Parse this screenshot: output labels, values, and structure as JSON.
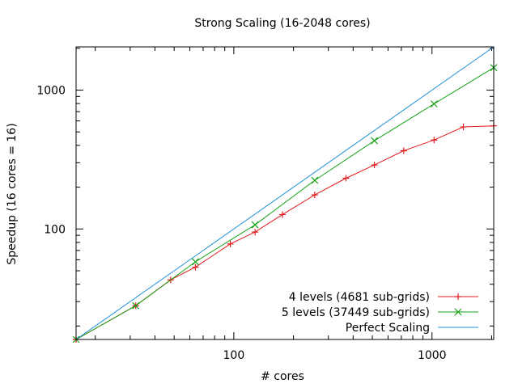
{
  "chart_data": {
    "type": "line",
    "title": "Strong Scaling (16-2048 cores)",
    "xlabel": "# cores",
    "ylabel": "Speedup (16 cores = 16)",
    "x_scale": "log",
    "y_scale": "log",
    "xlim": [
      16,
      2048
    ],
    "ylim": [
      16,
      2048
    ],
    "x_ticks": [
      {
        "value": 100,
        "label": "100"
      },
      {
        "value": 1000,
        "label": "1000"
      }
    ],
    "y_ticks": [
      {
        "value": 100,
        "label": "100"
      },
      {
        "value": 1000,
        "label": "1000"
      }
    ],
    "grid": false,
    "legend_position": "bottom-right",
    "series": [
      {
        "name": "4 levels (4681 sub-grids)",
        "color": "#e41a1c",
        "marker": "plus",
        "x": [
          16,
          32,
          48,
          64,
          96,
          128,
          176,
          256,
          368,
          512,
          720,
          1024,
          1440,
          2048
        ],
        "y": [
          16,
          28,
          43,
          53,
          78,
          95,
          127,
          176,
          232,
          289,
          366,
          437,
          543,
          553
        ]
      },
      {
        "name": "5 levels (37449 sub-grids)",
        "color": "#16a116",
        "marker": "x",
        "x": [
          16,
          32,
          64,
          128,
          256,
          512,
          1024,
          2048
        ],
        "y": [
          16,
          28,
          58,
          107,
          224,
          432,
          796,
          1452
        ]
      },
      {
        "name": "Perfect Scaling",
        "color": "#1e90d8",
        "marker": "none",
        "x": [
          16,
          2048
        ],
        "y": [
          16,
          2048
        ]
      }
    ]
  }
}
